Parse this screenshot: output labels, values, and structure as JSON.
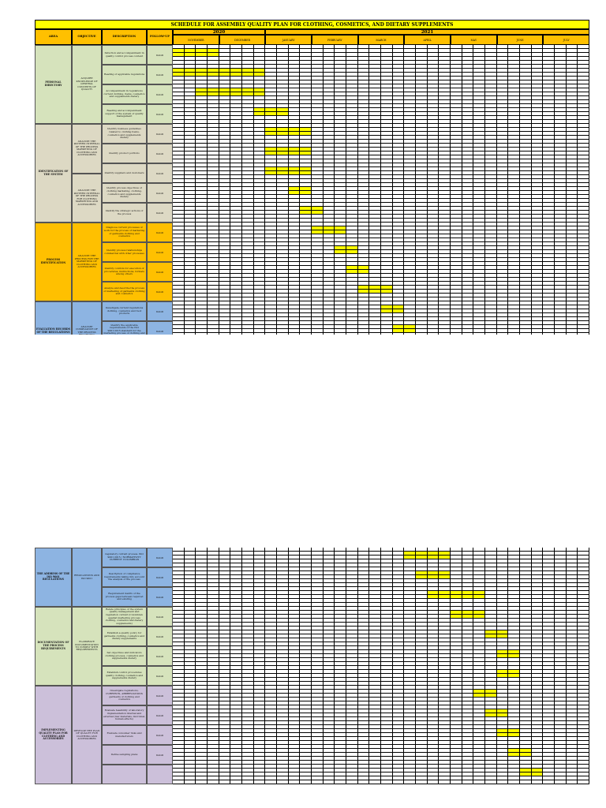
{
  "title": "SCHEDULE FOR ASSEMBLY QUALITY PLAN FOR CLOTHING, COSMETICS, AND DIETARY SUPPLEMENTS",
  "columns": {
    "area": "AREA",
    "objective": "OBJECTIVE",
    "description": "DESCRIPTION",
    "follow_up": "FOLLOW-UP"
  },
  "years": [
    "2020",
    "2021"
  ],
  "months": [
    "NOVEMBER",
    "DECEMBER",
    "JANUARY",
    "FEBRUARY",
    "MARCH",
    "APRIL",
    "MAY",
    "JUNE",
    "JULY"
  ],
  "colors": {
    "yellow": "#ffff00",
    "header": "#ffc000",
    "green": "#d6e3bc",
    "tan": "#ddd9c4",
    "orange": "#ffc000",
    "blue": "#8db4e2",
    "lavender": "#ccc0da"
  },
  "sheet1": {
    "sections": [
      {
        "area": "PERSONAL DIRECTORY",
        "objective": "ACQUIRE KNOWLEDGE OF GENERAL CONCEPTS OF QUALITY",
        "color": "#d6e3bc",
        "tasks": [
          {
            "description": "Induction and accompaniment in quality control process content",
            "follow_up": "DAGD",
            "fill": [
              [
                0,
                4
              ]
            ]
          },
          {
            "description": "Reading of applicable regulations",
            "follow_up": "DAGD",
            "fill": [
              [
                0,
                8
              ]
            ]
          },
          {
            "description": "Accompaniment in regulations current clothing, items, cosmetics and supplements dietary",
            "follow_up": "DAGD",
            "fill": [
              [
                2,
                8
              ]
            ]
          },
          {
            "description": "Reading and accompaniment support of the system of quality management",
            "follow_up": "DAGD",
            "fill": [
              [
                7,
                10
              ]
            ]
          }
        ]
      },
      {
        "area": "IDENTIFICATION OF THE SYSTEM",
        "objective": "ANALYZE THE PATTERN INTERNAL OF THE PROCESS MARKETING OF CLOTHING AND ACCESSORIES",
        "objective2": "ANALYZE THE PATTERN INTERNAL OF THE PROCESS FOR CLOTHING MARKETING AND ACCESSORIES",
        "color": "#ddd9c4",
        "tasks": [
          {
            "description": "Identify business guidelines related to clothing items, cosmetics and supplements dietary",
            "follow_up": "DAGD",
            "fill": [
              [
                8,
                12
              ]
            ]
          },
          {
            "description": "Identify product portfolio",
            "follow_up": "DAGD",
            "fill": [
              [
                8,
                12
              ]
            ]
          },
          {
            "description": "Identify suppliers and customers",
            "follow_up": "DAGD",
            "fill": [
              [
                8,
                12
              ]
            ]
          },
          {
            "description": "Identify process objectives of clothing marketing, clothing, cosmetics and supplements dietary",
            "follow_up": "DAGD",
            "fill": [
              [
                10,
                12
              ]
            ]
          },
          {
            "description": "Identify the strategic actions of the process",
            "follow_up": "DAGD",
            "fill": [
              [
                11,
                13
              ]
            ]
          }
        ]
      },
      {
        "area": "PROCESS IDENTIFICATION",
        "objective": "ANALYZE THE PROCESS FOR THE MARKETING OF CLOTHING AND ACCESSORIES",
        "color": "#ffc000",
        "tasks": [
          {
            "description": "Diagnose current processes of work for the process of marketing of garments clothing and cosmetics",
            "follow_up": "DAGD",
            "fill": [
              [
                12,
                15
              ]
            ]
          },
          {
            "description": "Identify process relationships commercial with other processes",
            "follow_up": "DAGD",
            "fill": [
              [
                14,
                16
              ]
            ]
          },
          {
            "description": "Identify controls for execution of procedures, instructions, formats among others",
            "follow_up": "DAGD",
            "fill": [
              [
                15,
                17
              ]
            ]
          },
          {
            "description": "Analyze and describe the process of marketing of garments clothing and cosmetics",
            "follow_up": "DAGD",
            "fill": [
              [
                16,
                19
              ]
            ]
          }
        ]
      },
      {
        "area": "EVALUATION RECORDS OF THE REGULATIONS",
        "objective": "ANALYZE COMPLIANCE OF THE PROCESS REGARDING",
        "color": "#8db4e2",
        "tasks": [
          {
            "description": "Investigate current regulations clothing, cosmetics and food products",
            "follow_up": "DAGD",
            "fill": [
              [
                18,
                20
              ]
            ]
          },
          {
            "description": "Identify the applicable requirements of the ISO 9001:2015 standard for the marketing process of clothing and cosmetics",
            "follow_up": "DAGD",
            "fill": [
              [
                19,
                21
              ]
            ]
          },
          {
            "description": "Review standard requirements",
            "follow_up": "DAGD",
            "fill": [
              [
                20,
                24
              ]
            ]
          }
        ]
      }
    ]
  },
  "sheet2": {
    "sections": [
      {
        "area": "THE ADDRESS OF THE ISO 9001 REGULATIONS",
        "objective": "REGULATIONS AND ISO 9001",
        "color": "#8db4e2",
        "tasks": [
          {
            "description": "regulatory current process. ISO 9001:2015 / NORMATIVITY CURRENT COLOMBIAN",
            "follow_up": "DAGD",
            "fill": [
              [
                20,
                24
              ]
            ]
          },
          {
            "description": "Description of compliance requirements taking into account the analysis of the process",
            "follow_up": "DAGD",
            "fill": [
              [
                21,
                24
              ]
            ]
          },
          {
            "description": "Requirement matrix of the process gaps between required and existing",
            "follow_up": "DAGD",
            "fill": [
              [
                22,
                27
              ]
            ]
          }
        ]
      },
      {
        "area": "DOCUMENTATION OF THE PROCESS REQUIREMENTS",
        "objective": "ELABORATE DOCUMENTATION TO COMPLY WITH REQUIREMENTS",
        "color": "#d6e3bc",
        "tasks": [
          {
            "description": "Relate principles of the system quality management and regulation current (Colombian against marketing process clothing, cosmetics and dietary supplements)",
            "follow_up": "DAGD",
            "fill": [
              [
                24,
                27
              ]
            ]
          },
          {
            "description": "Establish a quality policy for garments clothing, cosmetics and dietary supplements",
            "follow_up": "DAGD",
            "fill": [
              [
                27,
                29
              ]
            ]
          },
          {
            "description": "Set objectives and indicators clothing process, cosmetics and supplements dietary",
            "follow_up": "DAGD",
            "fill": [
              [
                28,
                30
              ]
            ]
          },
          {
            "description": "Establish control procedures quality clothing, cosmetics and supplements dietary",
            "follow_up": "DAGD",
            "fill": [
              [
                28,
                30
              ]
            ]
          }
        ]
      },
      {
        "area": "IMPLEMENTING QUALITY PLAN FOR CLOTHING AND ACCESSORIES",
        "objective": "DEVELOP THE PLAN OF QUALITY FOR CLOTHING AND ACCESSORIES",
        "color": "#ccc0da",
        "tasks": [
          {
            "description": "Investigate regulations, CURRENTS, ABBREVIATIONS garments of clothing and cosmetics",
            "follow_up": "DAGD",
            "fill": [
              [
                26,
                28
              ]
            ]
          },
          {
            "description": "Evaluate feasibility of laboratory implementation internal and external (raw materials, microbial, human effects)",
            "follow_up": "DAGD",
            "fill": [
              [
                27,
                29
              ]
            ]
          },
          {
            "description": "Evaluate consumer risks and manufacturers",
            "follow_up": "DAGD",
            "fill": [
              [
                28,
                30
              ]
            ]
          },
          {
            "description": "Define sampling plans",
            "follow_up": "DAGD",
            "fill": [
              [
                29,
                31
              ]
            ]
          },
          {
            "description": "",
            "follow_up": "",
            "fill": [
              [
                30,
                32
              ]
            ]
          }
        ]
      }
    ]
  }
}
